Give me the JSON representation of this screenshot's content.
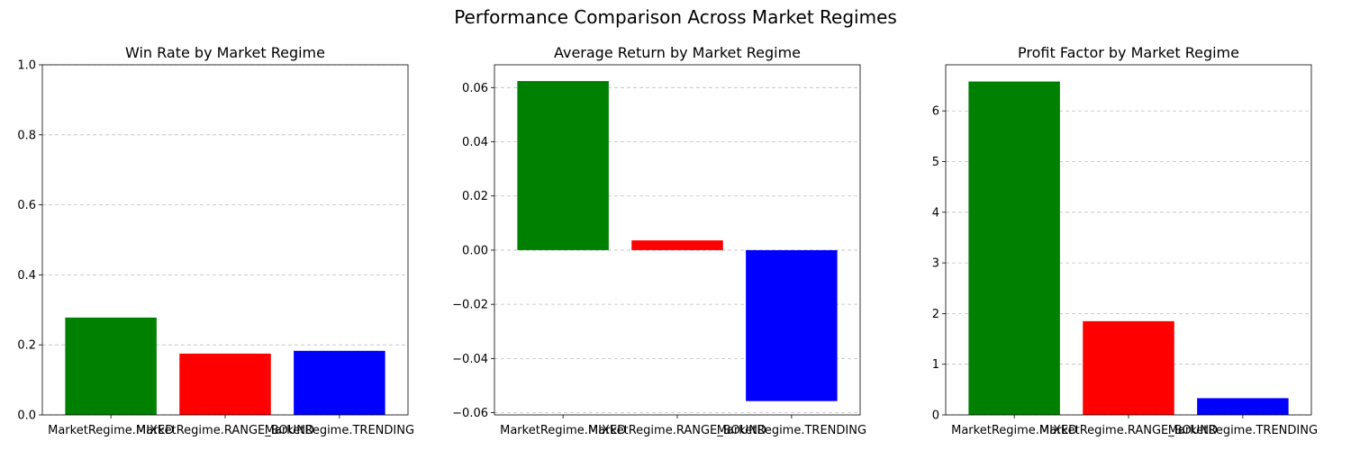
{
  "figure_title": "Performance Comparison Across Market Regimes",
  "chart_data": [
    {
      "type": "bar",
      "title": "Win Rate by Market Regime",
      "xlabel": "",
      "ylabel": "",
      "categories": [
        "MarketRegime.MIXED",
        "MarketRegime.RANGE_BOUND",
        "MarketRegime.TRENDING"
      ],
      "values": [
        0.278,
        0.175,
        0.183
      ],
      "colors": [
        "#008000",
        "#ff0000",
        "#0000ff"
      ],
      "ylim": [
        0,
        1.0
      ],
      "yticks": [
        0.0,
        0.2,
        0.4,
        0.6,
        0.8,
        1.0
      ],
      "ytick_labels": [
        "0.0",
        "0.2",
        "0.4",
        "0.6",
        "0.8",
        "1.0"
      ],
      "grid": "y"
    },
    {
      "type": "bar",
      "title": "Average Return by Market Regime",
      "xlabel": "",
      "ylabel": "",
      "categories": [
        "MarketRegime.MIXED",
        "MarketRegime.RANGE_BOUND",
        "MarketRegime.TRENDING"
      ],
      "values": [
        0.0624,
        0.0036,
        -0.0557
      ],
      "colors": [
        "#008000",
        "#ff0000",
        "#0000ff"
      ],
      "ylim": [
        -0.0608,
        0.0684
      ],
      "yticks": [
        -0.06,
        -0.04,
        -0.02,
        0.0,
        0.02,
        0.04,
        0.06
      ],
      "ytick_labels": [
        "−0.06",
        "−0.04",
        "−0.02",
        "0.00",
        "0.02",
        "0.04",
        "0.06"
      ],
      "grid": "y"
    },
    {
      "type": "bar",
      "title": "Profit Factor by Market Regime",
      "xlabel": "",
      "ylabel": "",
      "categories": [
        "MarketRegime.MIXED",
        "MarketRegime.RANGE_BOUND",
        "MarketRegime.TRENDING"
      ],
      "values": [
        6.58,
        1.85,
        0.33
      ],
      "colors": [
        "#008000",
        "#ff0000",
        "#0000ff"
      ],
      "ylim": [
        0,
        6.91
      ],
      "yticks": [
        0,
        1,
        2,
        3,
        4,
        5,
        6
      ],
      "ytick_labels": [
        "0",
        "1",
        "2",
        "3",
        "4",
        "5",
        "6"
      ],
      "grid": "y"
    }
  ]
}
